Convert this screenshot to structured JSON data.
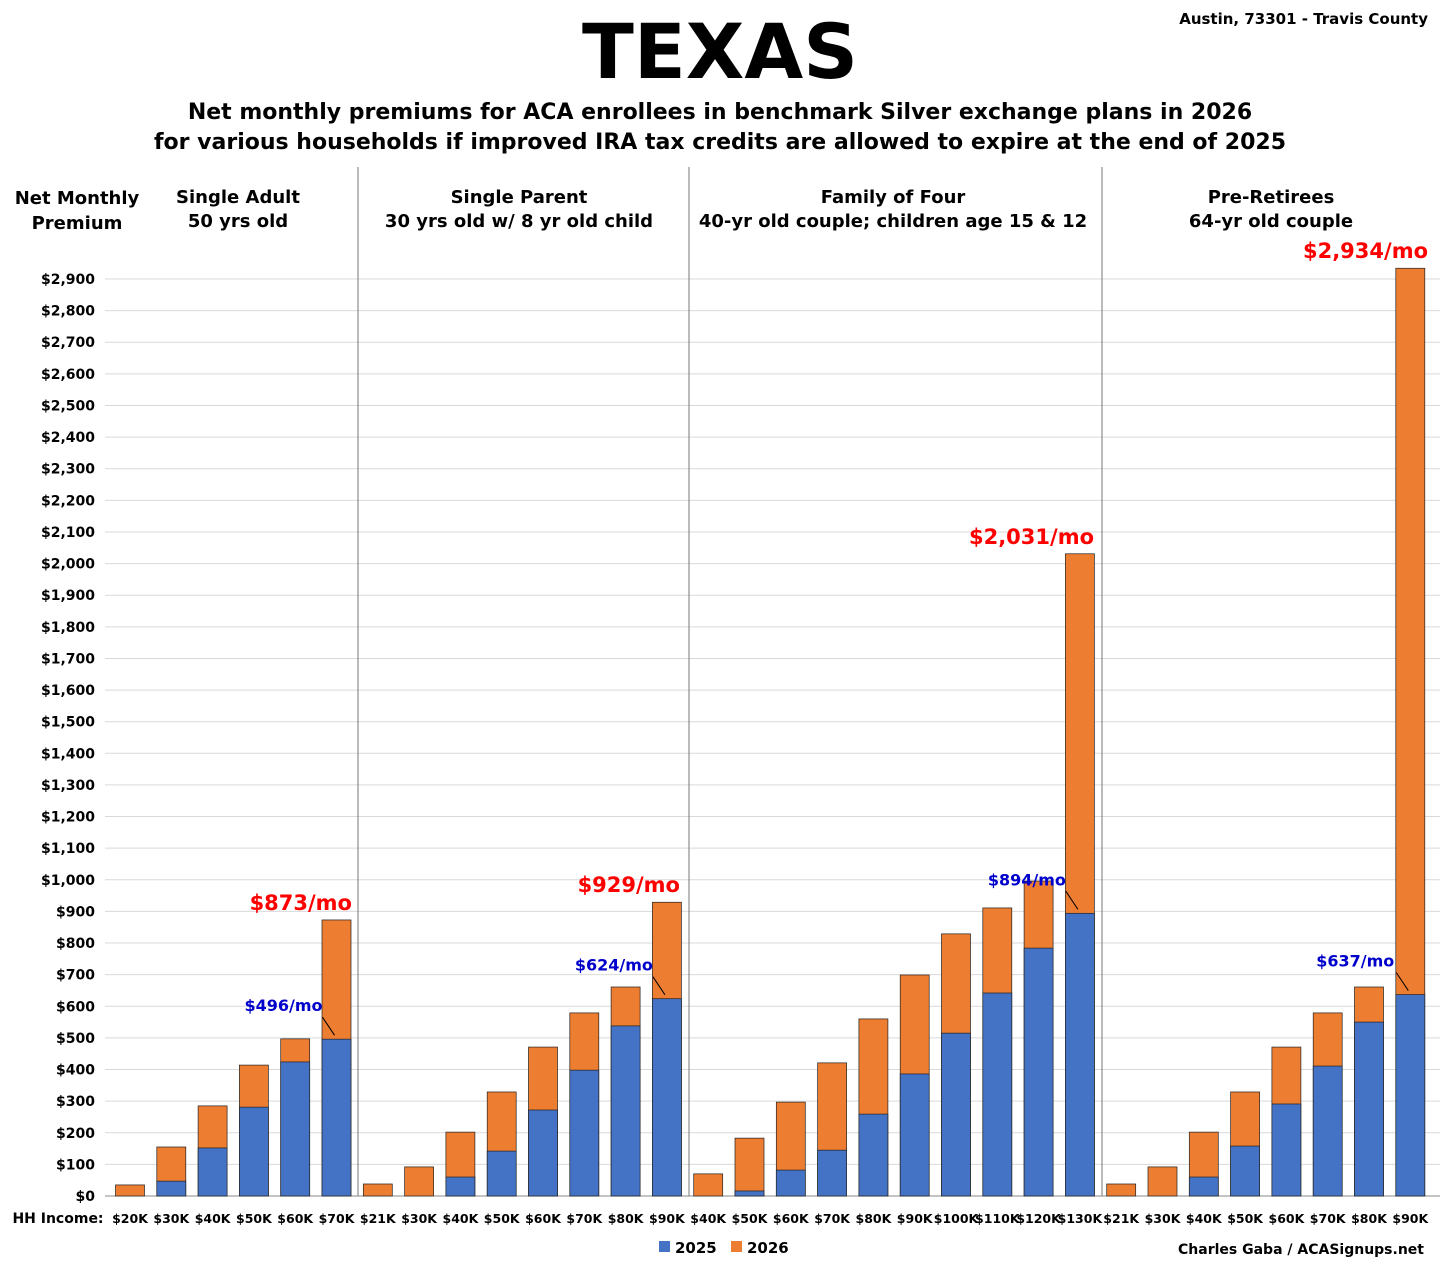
{
  "header": {
    "title": "TEXAS",
    "subtitle_line1": "Net monthly premiums for ACA enrollees in benchmark Silver exchange plans in 2026",
    "subtitle_line2": "for various households if improved IRA tax credits are allowed to expire at the end of 2025",
    "location": "Austin, 73301 - Travis County",
    "credit": "Charles Gaba / ACASignups.net"
  },
  "chart_data": {
    "type": "bar",
    "stacking": "overlapping (2025 value drawn in front of 2026 value)",
    "ylabel_line1": "Net Monthly",
    "ylabel_line2": "Premium",
    "xlabel": "HH Income:",
    "ylim": [
      0,
      2900
    ],
    "ytick_step": 100,
    "grid": true,
    "legend_placement": "bottom",
    "colors": {
      "2025": "#4472C4",
      "2026": "#ED7D31",
      "highlight_2026": "#FF0000",
      "highlight_2025": "#0000CC"
    },
    "legend": [
      "2025",
      "2026"
    ],
    "panels": [
      {
        "title1": "Single Adult",
        "title2": "50 yrs old",
        "categories": [
          "$20K",
          "$30K",
          "$40K",
          "$50K",
          "$60K",
          "$70K"
        ],
        "y2025": [
          0,
          47,
          152,
          281,
          424,
          496
        ],
        "y2026": [
          35,
          155,
          285,
          414,
          497,
          873
        ],
        "label2025": "$496/mo",
        "label2026": "$873/mo"
      },
      {
        "title1": "Single Parent",
        "title2": "30 yrs old w/ 8 yr old child",
        "categories": [
          "$21K",
          "$30K",
          "$40K",
          "$50K",
          "$60K",
          "$70K",
          "$80K",
          "$90K"
        ],
        "y2025": [
          0,
          0,
          60,
          142,
          272,
          398,
          538,
          624
        ],
        "y2026": [
          38,
          92,
          202,
          329,
          471,
          579,
          661,
          929
        ],
        "label2025": "$624/mo",
        "label2026": "$929/mo"
      },
      {
        "title1": "Family of Four",
        "title2": "40-yr old couple; children age 15 & 12",
        "categories": [
          "$40K",
          "$50K",
          "$60K",
          "$70K",
          "$80K",
          "$90K",
          "$100K",
          "$110K",
          "$120K",
          "$130K"
        ],
        "y2025": [
          0,
          16,
          82,
          145,
          259,
          386,
          515,
          642,
          784,
          894
        ],
        "y2026": [
          70,
          183,
          297,
          421,
          560,
          699,
          829,
          911,
          996,
          2031
        ],
        "label2025": "$894/mo",
        "label2026": "$2,031/mo"
      },
      {
        "title1": "Pre-Retirees",
        "title2": "64-yr old couple",
        "categories": [
          "$21K",
          "$30K",
          "$40K",
          "$50K",
          "$60K",
          "$70K",
          "$80K",
          "$90K"
        ],
        "y2025": [
          0,
          0,
          60,
          158,
          291,
          411,
          550,
          637
        ],
        "y2026": [
          38,
          92,
          202,
          329,
          471,
          579,
          661,
          2934
        ],
        "label2025": "$637/mo",
        "label2026": "$2,934/mo"
      }
    ]
  }
}
